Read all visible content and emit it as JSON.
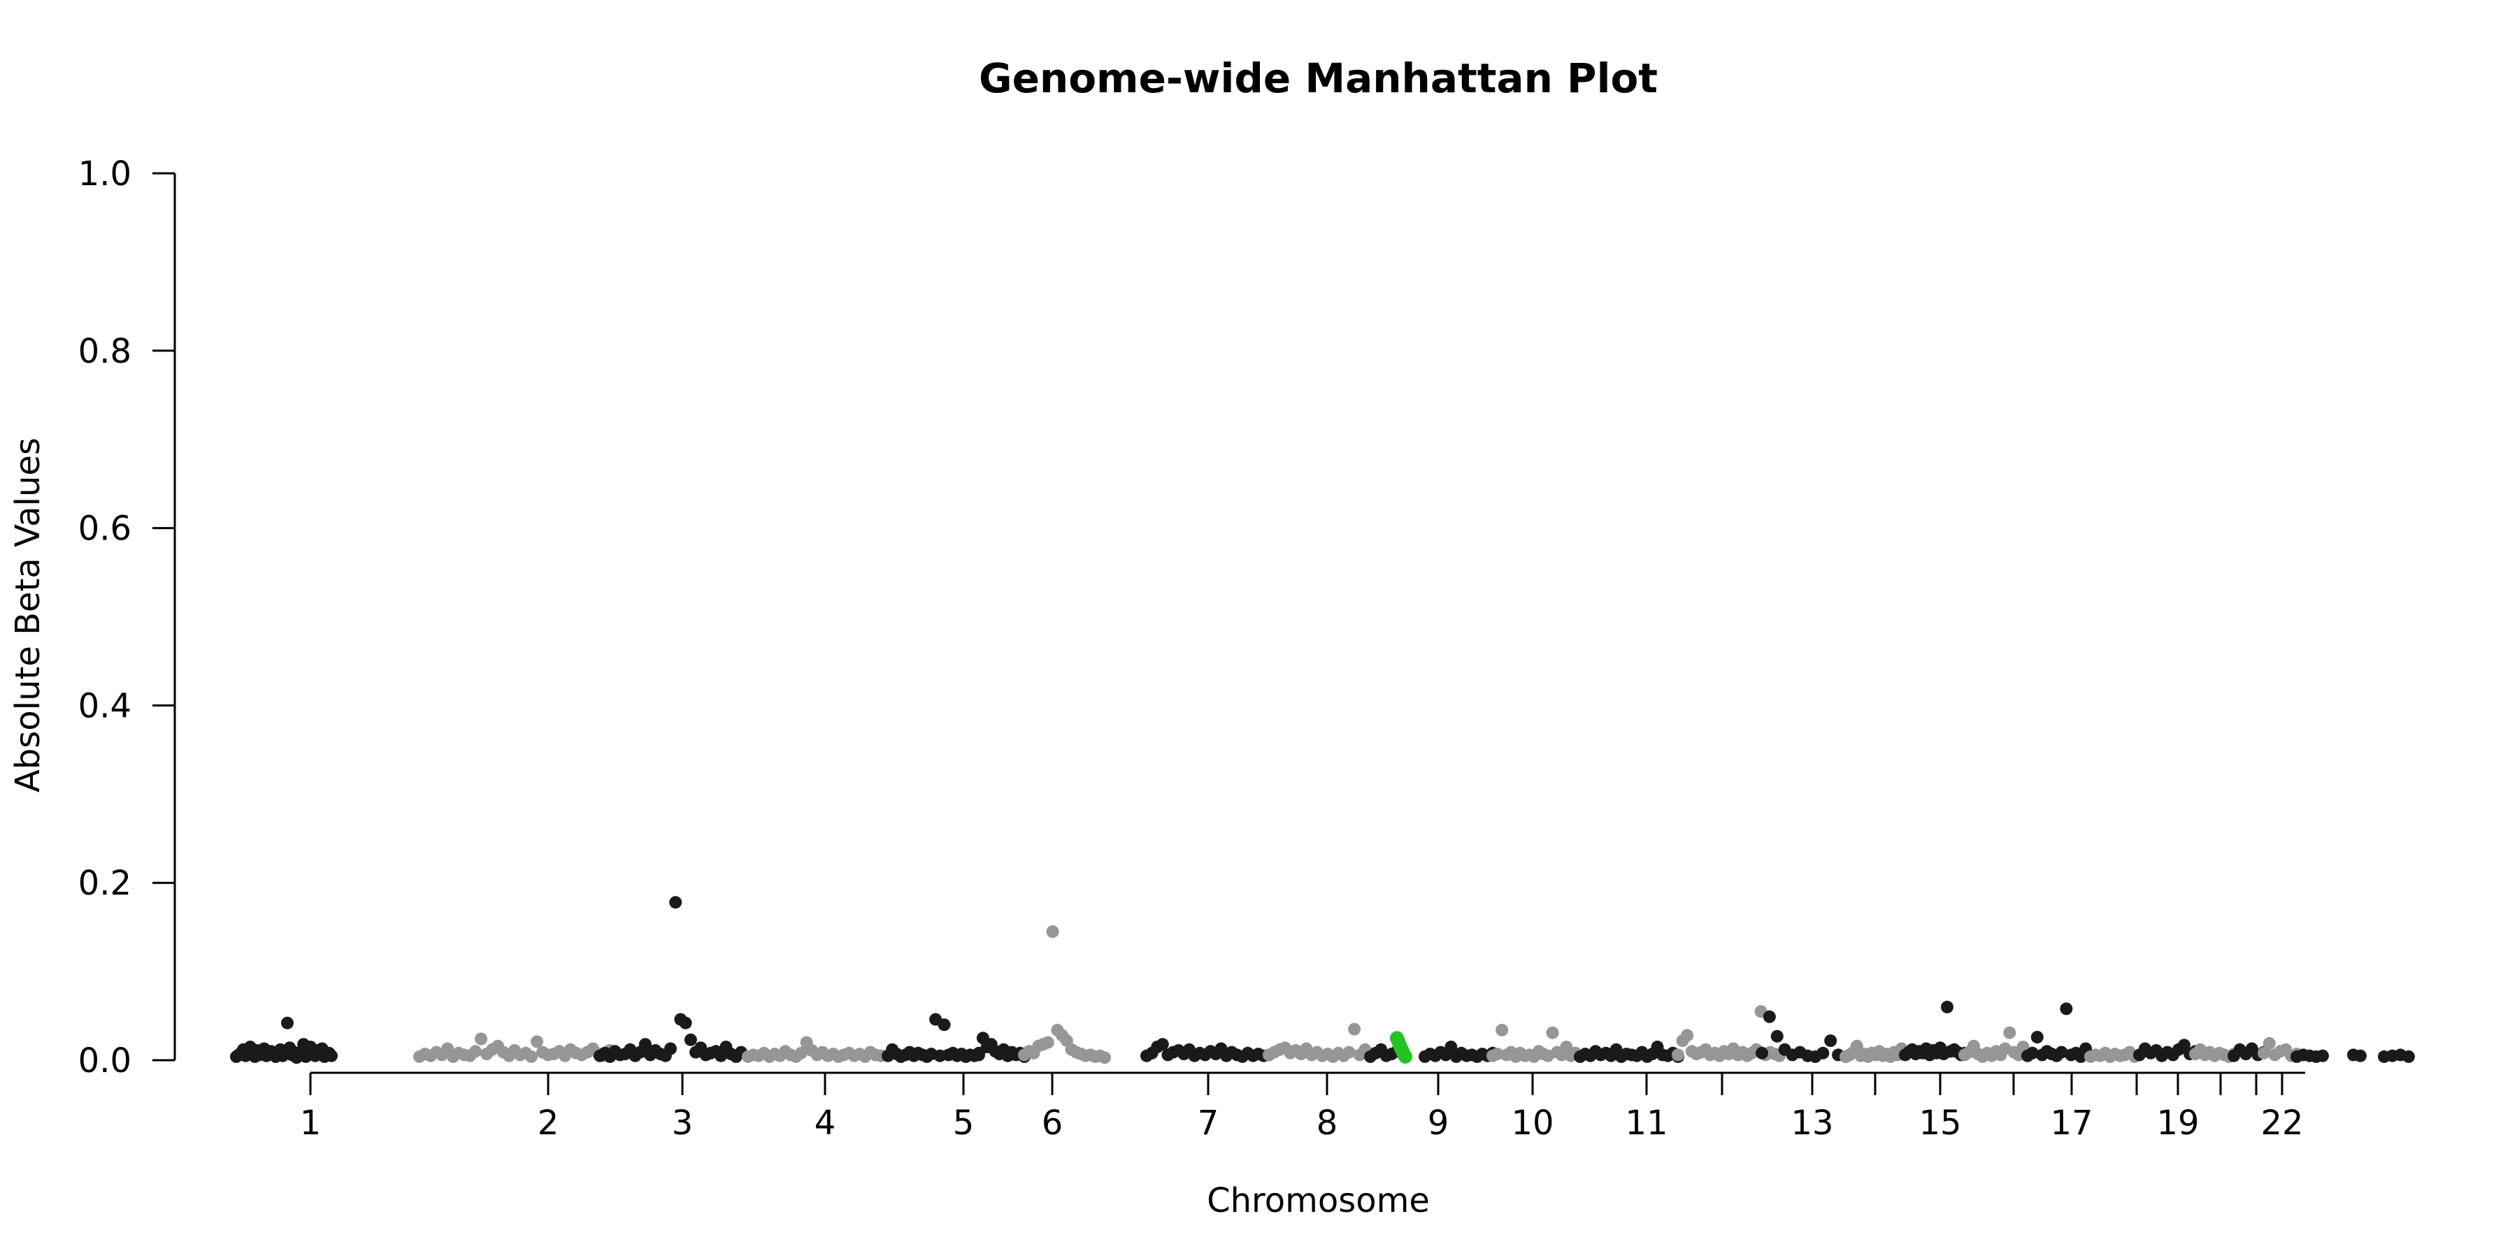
{
  "chart_data": {
    "type": "scatter",
    "title": "Genome-wide Manhattan Plot",
    "xlabel": "Chromosome",
    "ylabel": "Absolute Beta Values",
    "ylim": [
      0,
      1
    ],
    "yticks": [
      "0.0",
      "0.2",
      "0.4",
      "0.6",
      "0.8",
      "1.0"
    ],
    "grid": false,
    "colors": {
      "odd": "#1a1a1a",
      "even": "#969696",
      "highlight": "#22c422"
    },
    "chromosomes": [
      {
        "chr": "1",
        "label": "1"
      },
      {
        "chr": "2",
        "label": "2"
      },
      {
        "chr": "3",
        "label": "3"
      },
      {
        "chr": "4",
        "label": "4"
      },
      {
        "chr": "5",
        "label": "5"
      },
      {
        "chr": "6",
        "label": "6"
      },
      {
        "chr": "7",
        "label": "7"
      },
      {
        "chr": "8",
        "label": "8"
      },
      {
        "chr": "9",
        "label": "9"
      },
      {
        "chr": "10",
        "label": "10"
      },
      {
        "chr": "11",
        "label": "11"
      },
      {
        "chr": "12",
        "label": ""
      },
      {
        "chr": "13",
        "label": "13"
      },
      {
        "chr": "14",
        "label": ""
      },
      {
        "chr": "15",
        "label": "15"
      },
      {
        "chr": "16",
        "label": ""
      },
      {
        "chr": "17",
        "label": "17"
      },
      {
        "chr": "18",
        "label": ""
      },
      {
        "chr": "19",
        "label": "19"
      },
      {
        "chr": "20",
        "label": ""
      },
      {
        "chr": "21",
        "label": ""
      },
      {
        "chr": "22",
        "label": "22"
      }
    ],
    "series": [
      {
        "chr": "1",
        "color": "odd",
        "values": [
          0.004,
          0.006,
          0.008,
          0.012,
          0.005,
          0.009,
          0.015,
          0.007,
          0.004,
          0.011,
          0.006,
          0.009,
          0.013,
          0.005,
          0.008,
          0.01,
          0.006,
          0.004,
          0.007,
          0.012,
          0.005,
          0.008,
          0.042,
          0.014,
          0.006,
          0.009,
          0.003,
          0.005,
          0.007,
          0.018,
          0.004,
          0.006,
          0.015,
          0.009,
          0.005,
          0.011,
          0.007,
          0.013,
          0.004,
          0.006,
          0.008,
          0.005
        ]
      },
      {
        "chr": "2",
        "color": "even",
        "values": [
          0.004,
          0.007,
          0.005,
          0.009,
          0.006,
          0.013,
          0.004,
          0.008,
          0.006,
          0.005,
          0.01,
          0.024,
          0.007,
          0.012,
          0.016,
          0.009,
          0.005,
          0.011,
          0.006,
          0.008,
          0.004,
          0.021,
          0.009,
          0.006,
          0.007,
          0.01,
          0.005,
          0.012,
          0.008,
          0.006,
          0.009,
          0.013,
          0.007,
          0.005,
          0.011,
          0.008
        ]
      },
      {
        "chr": "3",
        "color": "odd",
        "values": [
          0.005,
          0.008,
          0.004,
          0.01,
          0.006,
          0.007,
          0.012,
          0.005,
          0.009,
          0.018,
          0.006,
          0.011,
          0.007,
          0.005,
          0.013,
          0.178,
          0.046,
          0.042,
          0.023,
          0.009,
          0.014,
          0.006,
          0.008,
          0.01,
          0.005,
          0.015,
          0.007,
          0.004,
          0.009
        ]
      },
      {
        "chr": "4",
        "color": "even",
        "values": [
          0.004,
          0.006,
          0.005,
          0.008,
          0.004,
          0.007,
          0.005,
          0.01,
          0.006,
          0.004,
          0.008,
          0.02,
          0.011,
          0.006,
          0.009,
          0.005,
          0.007,
          0.004,
          0.006,
          0.008,
          0.005,
          0.007,
          0.004,
          0.009,
          0.006,
          0.005
        ]
      },
      {
        "chr": "5",
        "color": "odd",
        "values": [
          0.005,
          0.012,
          0.007,
          0.004,
          0.006,
          0.009,
          0.005,
          0.008,
          0.006,
          0.004,
          0.007,
          0.046,
          0.005,
          0.04,
          0.006,
          0.008,
          0.005,
          0.007,
          0.004,
          0.006,
          0.005,
          0.008
        ]
      },
      {
        "chr": "6",
        "color": "odd",
        "values": [
          0.006,
          0.025,
          0.015,
          0.018,
          0.01,
          0.007,
          0.012,
          0.005,
          0.009,
          0.006,
          0.008,
          0.004
        ]
      },
      {
        "chr": "6b",
        "color": "even",
        "values": [
          0.006,
          0.01,
          0.008,
          0.016,
          0.018,
          0.02,
          0.145,
          0.034,
          0.028,
          0.022,
          0.012,
          0.009,
          0.007,
          0.005,
          0.006,
          0.004,
          0.005,
          0.003
        ]
      },
      {
        "chr": "7",
        "color": "odd",
        "values": [
          0.005,
          0.008,
          0.015,
          0.018,
          0.006,
          0.009,
          0.011,
          0.007,
          0.012,
          0.005,
          0.008,
          0.006,
          0.01,
          0.007,
          0.013,
          0.005,
          0.009,
          0.006,
          0.004,
          0.008,
          0.005,
          0.007,
          0.005,
          0.006
        ]
      },
      {
        "chr": "8",
        "color": "even",
        "values": [
          0.006,
          0.009,
          0.012,
          0.014,
          0.008,
          0.011,
          0.007,
          0.013,
          0.006,
          0.009,
          0.005,
          0.007,
          0.004,
          0.008,
          0.005,
          0.009,
          0.035,
          0.006,
          0.012,
          0.007
        ]
      },
      {
        "chr": "8b",
        "color": "odd",
        "values": [
          0.004,
          0.008,
          0.012,
          0.005,
          0.007,
          0.01
        ]
      },
      {
        "chr": "8c",
        "color": "highlight",
        "values": [
          0.025,
          0.022,
          0.018,
          0.015,
          0.012,
          0.009,
          0.006,
          0.004
        ]
      },
      {
        "chr": "9",
        "color": "odd",
        "values": [
          0.004,
          0.007,
          0.005,
          0.009,
          0.006,
          0.015,
          0.004,
          0.008,
          0.005,
          0.006,
          0.004,
          0.007,
          0.005,
          0.008
        ]
      },
      {
        "chr": "10",
        "color": "even",
        "values": [
          0.005,
          0.007,
          0.034,
          0.006,
          0.009,
          0.004,
          0.008,
          0.005,
          0.006,
          0.004,
          0.01,
          0.007,
          0.005,
          0.031,
          0.009,
          0.006,
          0.015,
          0.005,
          0.008,
          0.004
        ]
      },
      {
        "chr": "11",
        "color": "odd",
        "values": [
          0.004,
          0.007,
          0.005,
          0.01,
          0.006,
          0.008,
          0.005,
          0.012,
          0.004,
          0.007,
          0.006,
          0.005,
          0.009,
          0.004,
          0.007,
          0.015,
          0.006,
          0.005,
          0.008,
          0.004
        ]
      },
      {
        "chr": "12",
        "color": "even",
        "values": [
          0.006,
          0.022,
          0.028,
          0.01,
          0.007,
          0.009,
          0.012,
          0.006,
          0.008,
          0.005,
          0.01,
          0.007,
          0.013,
          0.006,
          0.009,
          0.005,
          0.008,
          0.012,
          0.055,
          0.006,
          0.009,
          0.007,
          0.005
        ]
      },
      {
        "chr": "13",
        "color": "odd",
        "values": [
          0.008,
          0.049,
          0.027,
          0.012,
          0.006,
          0.009,
          0.005,
          0.004,
          0.008,
          0.022,
          0.006,
          0.004
        ]
      },
      {
        "chr": "14",
        "color": "even",
        "values": [
          0.004,
          0.006,
          0.009,
          0.016,
          0.005,
          0.007,
          0.004,
          0.008,
          0.006,
          0.01,
          0.005,
          0.007,
          0.004,
          0.009,
          0.006,
          0.013,
          0.008
        ]
      },
      {
        "chr": "15",
        "color": "odd",
        "values": [
          0.006,
          0.009,
          0.012,
          0.007,
          0.01,
          0.008,
          0.013,
          0.006,
          0.011,
          0.008,
          0.014,
          0.007,
          0.06,
          0.01,
          0.012,
          0.009,
          0.006,
          0.008
        ]
      },
      {
        "chr": "16",
        "color": "even",
        "values": [
          0.006,
          0.009,
          0.016,
          0.007,
          0.004,
          0.008,
          0.005,
          0.01,
          0.006,
          0.013,
          0.031,
          0.009,
          0.006,
          0.015,
          0.007
        ]
      },
      {
        "chr": "17",
        "color": "odd",
        "values": [
          0.005,
          0.008,
          0.026,
          0.006,
          0.01,
          0.007,
          0.005,
          0.009,
          0.058,
          0.006,
          0.008,
          0.004,
          0.013,
          0.005
        ]
      },
      {
        "chr": "18",
        "color": "even",
        "values": [
          0.004,
          0.006,
          0.005,
          0.008,
          0.004,
          0.007,
          0.005,
          0.006,
          0.009,
          0.004,
          0.006
        ]
      },
      {
        "chr": "19",
        "color": "odd",
        "values": [
          0.006,
          0.013,
          0.008,
          0.011,
          0.005,
          0.009,
          0.006,
          0.012,
          0.017,
          0.007,
          0.01
        ]
      },
      {
        "chr": "20",
        "color": "even",
        "values": [
          0.007,
          0.012,
          0.006,
          0.009,
          0.005,
          0.008,
          0.006,
          0.004,
          0.007
        ]
      },
      {
        "chr": "21",
        "color": "odd",
        "values": [
          0.005,
          0.012,
          0.007,
          0.013,
          0.006,
          0.009
        ]
      },
      {
        "chr": "22",
        "color": "even",
        "values": [
          0.008,
          0.019,
          0.006,
          0.01,
          0.012,
          0.005,
          0.007
        ]
      },
      {
        "chr": "22b",
        "color": "odd",
        "values": [
          0.004,
          0.006,
          0.005,
          0.004,
          0.005
        ]
      },
      {
        "chr": "X",
        "color": "odd",
        "values": [
          0.006,
          0.005
        ]
      },
      {
        "chr": "Y",
        "color": "odd",
        "values": [
          0.004,
          0.005,
          0.006,
          0.004
        ]
      }
    ]
  }
}
